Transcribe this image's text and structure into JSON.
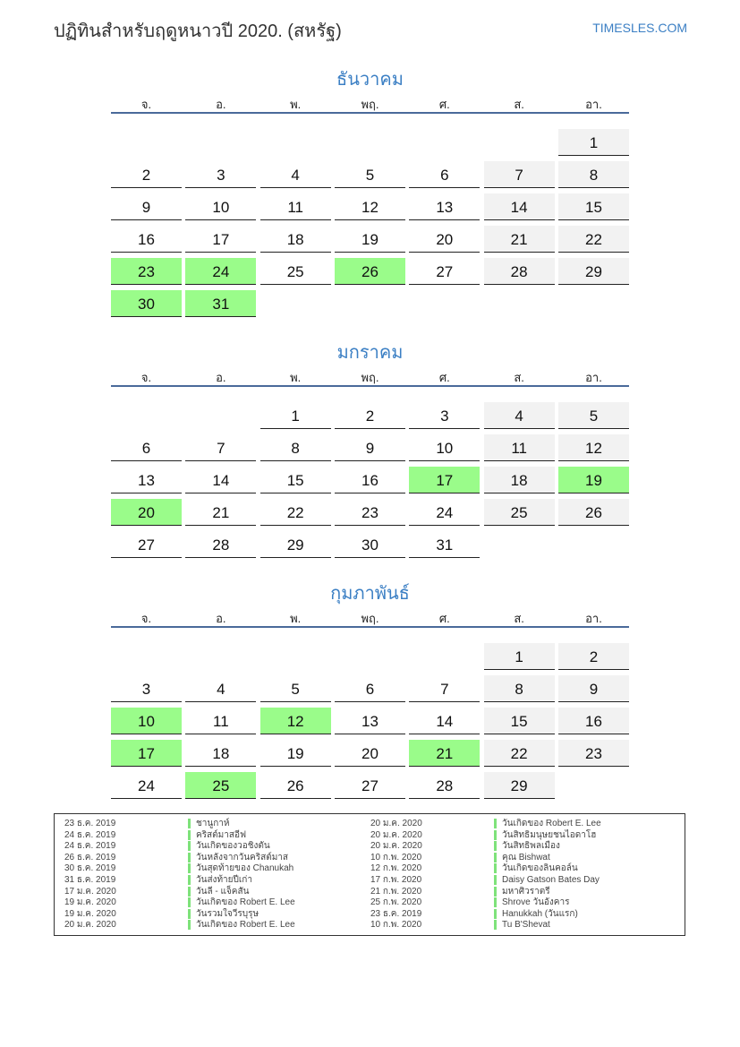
{
  "header": {
    "title": "ปฏิทินสำหรับฤดูหนาวปี 2020. (สหรัฐ)",
    "brand": "TIMESLES.COM"
  },
  "colors": {
    "accent": "#3b7fc4",
    "holiday": "#9afc8a",
    "weekend": "#f2f2f2",
    "rule": "#4a6a9a"
  },
  "weekdays": [
    "จ.",
    "อ.",
    "พ.",
    "พฤ.",
    "ศ.",
    "ส.",
    "อา."
  ],
  "months": [
    {
      "name": "ธันวาคม",
      "first_weekday": "อา.",
      "days": 31,
      "holidays": [
        23,
        24,
        26,
        30,
        31
      ]
    },
    {
      "name": "มกราคม",
      "first_weekday": "พ.",
      "days": 31,
      "holidays": [
        17,
        19,
        20
      ]
    },
    {
      "name": "กุมภาพันธ์",
      "first_weekday": "ส.",
      "days": 29,
      "holidays": [
        10,
        12,
        17,
        21,
        25
      ]
    }
  ],
  "legend": [
    {
      "date": "23 ธ.ค. 2019",
      "name": "ชานูกาห์"
    },
    {
      "date": "24 ธ.ค. 2019",
      "name": "คริสต์มาสอีฟ"
    },
    {
      "date": "24 ธ.ค. 2019",
      "name": "วันเกิดของวอชิงตัน"
    },
    {
      "date": "26 ธ.ค. 2019",
      "name": "วันหลังจากวันคริสต์มาส"
    },
    {
      "date": "30 ธ.ค. 2019",
      "name": "วันสุดท้ายของ Chanukah"
    },
    {
      "date": "31 ธ.ค. 2019",
      "name": "วันส่งท้ายปีเก่า"
    },
    {
      "date": "17 ม.ค. 2020",
      "name": "วันลี - แจ็คสัน"
    },
    {
      "date": "19 ม.ค. 2020",
      "name": "วันเกิดของ Robert E. Lee"
    },
    {
      "date": "19 ม.ค. 2020",
      "name": "วันรวมใจวีรบุรุษ"
    },
    {
      "date": "20 ม.ค. 2020",
      "name": "วันเกิดของ Robert E. Lee"
    },
    {
      "date": "20 ม.ค. 2020",
      "name": "วันเกิดของ Robert E. Lee"
    },
    {
      "date": "20 ม.ค. 2020",
      "name": "วันสิทธิมนุษยชนไอดาโฮ"
    },
    {
      "date": "20 ม.ค. 2020",
      "name": "วันสิทธิพลเมือง"
    },
    {
      "date": "10 ก.พ. 2020",
      "name": "คุณ Bishwat"
    },
    {
      "date": "12 ก.พ. 2020",
      "name": "วันเกิดของลินคอล์น"
    },
    {
      "date": "17 ก.พ. 2020",
      "name": "Daisy Gatson Bates Day"
    },
    {
      "date": "21 ก.พ. 2020",
      "name": "มหาศิวราตรี"
    },
    {
      "date": "25 ก.พ. 2020",
      "name": "Shrove วันอังคาร"
    },
    {
      "date": "23 ธ.ค. 2019",
      "name": "Hanukkah (วันแรก)"
    },
    {
      "date": "10 ก.พ. 2020",
      "name": "Tu B'Shevat"
    }
  ]
}
